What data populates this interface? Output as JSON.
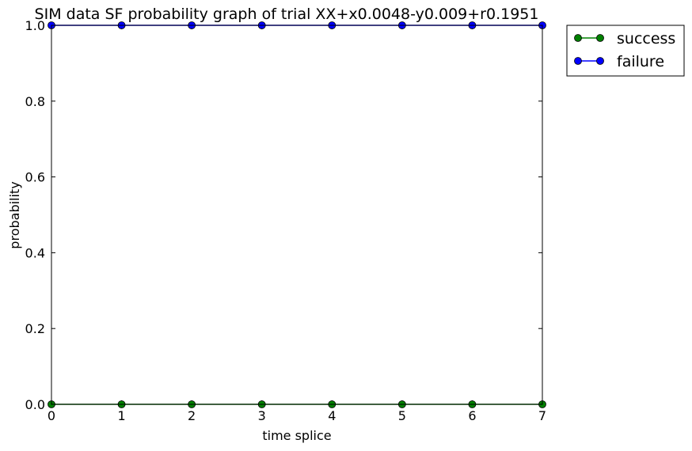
{
  "chart_data": {
    "type": "line",
    "title": "SIM data SF probability graph of trial XX+x0.0048-y0.009+r0.1951",
    "xlabel": "time splice",
    "ylabel": "probability",
    "xlim": [
      0,
      7
    ],
    "ylim": [
      0,
      1
    ],
    "xticks": [
      "0",
      "1",
      "2",
      "3",
      "4",
      "5",
      "6",
      "7"
    ],
    "yticks": [
      "0.0",
      "0.2",
      "0.4",
      "0.6",
      "0.8",
      "1.0"
    ],
    "x": [
      0,
      1,
      2,
      3,
      4,
      5,
      6,
      7
    ],
    "series": [
      {
        "name": "success",
        "color": "#008000",
        "values": [
          0,
          0,
          0,
          0,
          0,
          0,
          0,
          0
        ]
      },
      {
        "name": "failure",
        "color": "#0000ff",
        "values": [
          1,
          1,
          1,
          1,
          1,
          1,
          1,
          1
        ]
      }
    ],
    "grid": false,
    "legend": "outside-top-right"
  }
}
